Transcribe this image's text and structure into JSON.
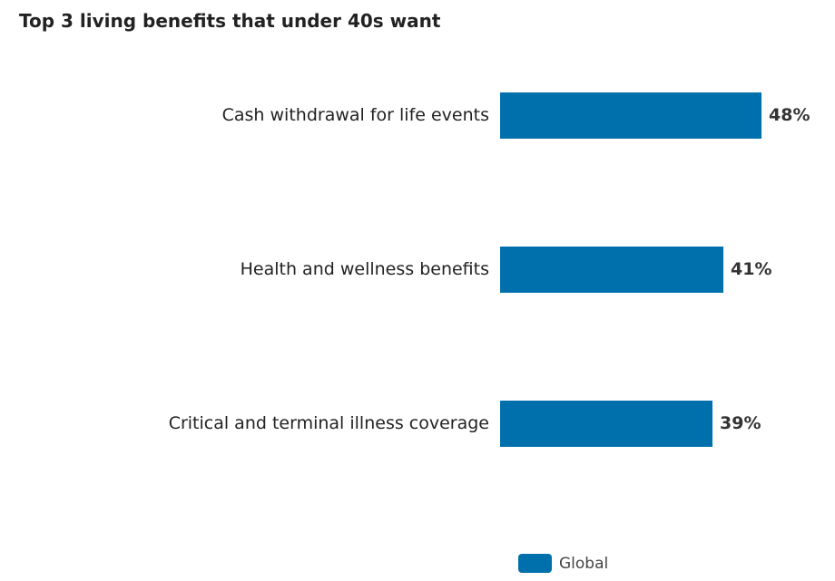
{
  "chart_data": {
    "type": "bar",
    "orientation": "horizontal",
    "title": "Top 3 living benefits that under 40s want",
    "categories": [
      "Cash withdrawal for life events",
      "Health and wellness benefits",
      "Critical and terminal illness coverage"
    ],
    "series": [
      {
        "name": "Global",
        "values": [
          48,
          41,
          39
        ],
        "value_labels": [
          "48%",
          "41%",
          "39%"
        ],
        "color": "#0070ad"
      }
    ],
    "xlim": [
      0,
      48
    ],
    "grid": false,
    "legend_position": "bottom"
  }
}
